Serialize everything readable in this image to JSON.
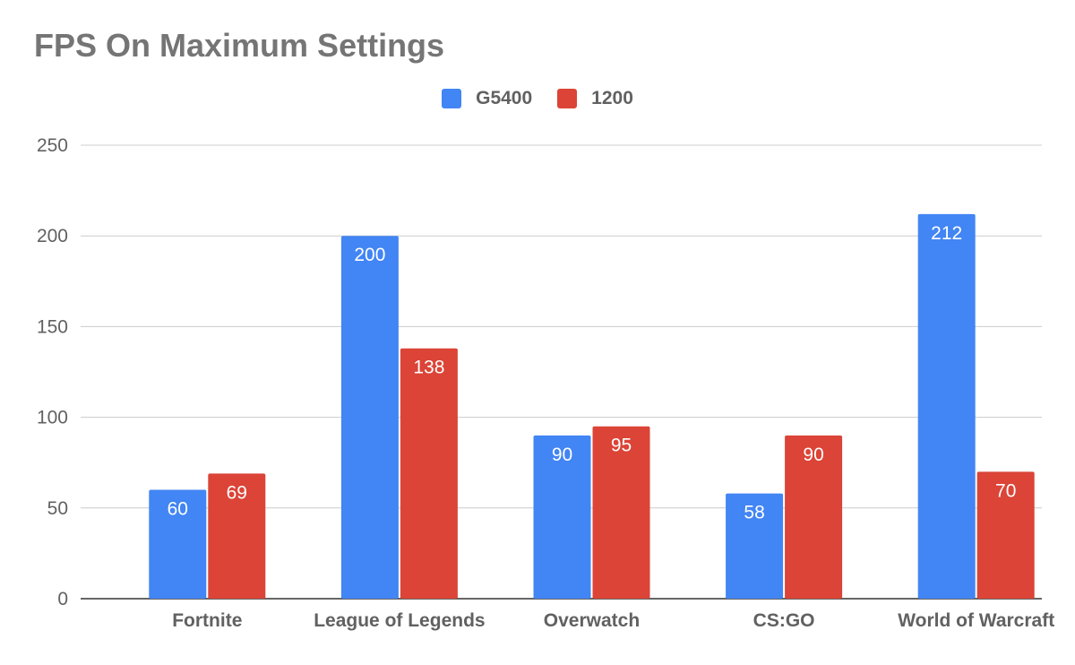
{
  "chart_data": {
    "type": "bar",
    "title": "FPS On Maximum Settings",
    "categories": [
      "Fortnite",
      "League of Legends",
      "Overwatch",
      "CS:GO",
      "World of Warcraft"
    ],
    "series": [
      {
        "name": "G5400",
        "color": "#4285F4",
        "values": [
          60,
          200,
          90,
          58,
          212
        ]
      },
      {
        "name": "1200",
        "color": "#DB4437",
        "values": [
          69,
          138,
          95,
          90,
          70
        ]
      }
    ],
    "ylim": [
      0,
      250
    ],
    "yticks": [
      0,
      50,
      100,
      150,
      200,
      250
    ],
    "grid": true,
    "legend_position": "top",
    "xlabel": "",
    "ylabel": ""
  }
}
